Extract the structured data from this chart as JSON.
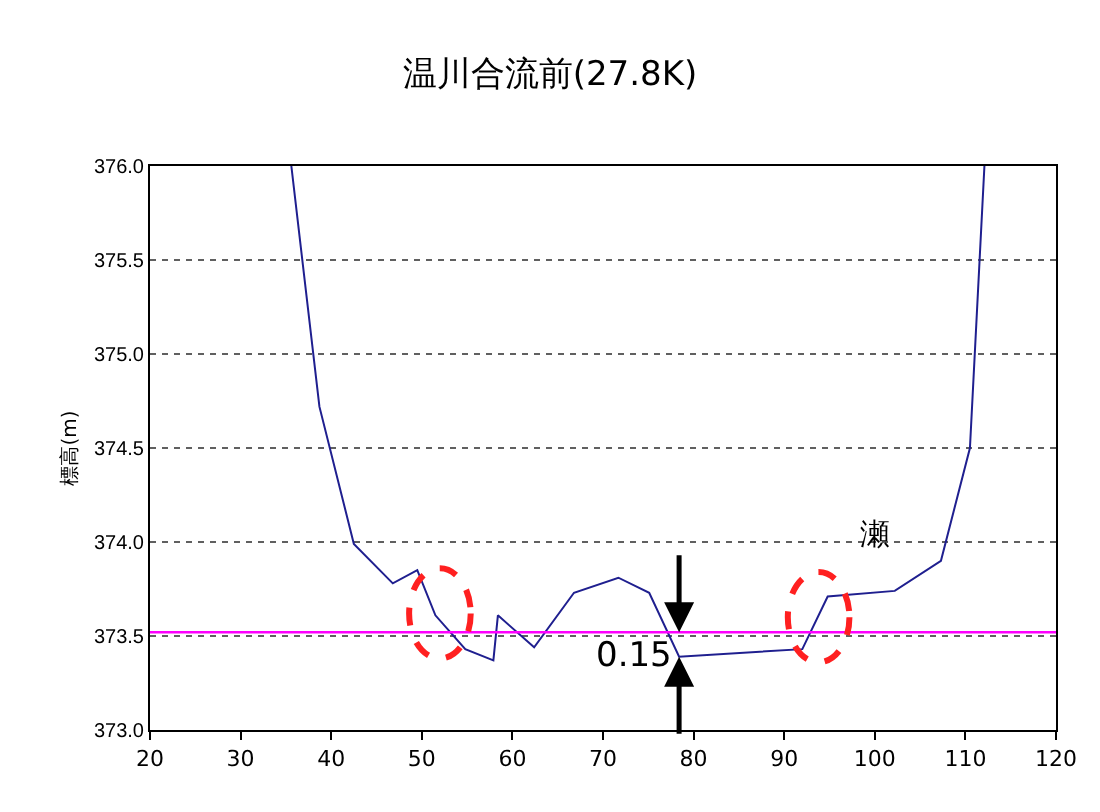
{
  "chart_data": {
    "type": "line",
    "title": "温川合流前(27.8K)",
    "ylabel": "標高(m)",
    "x": [
      35.6,
      38.7,
      42.5,
      46.8,
      49.5,
      51.5,
      54.8,
      57.9,
      58.4,
      62.4,
      66.8,
      71.7,
      75.1,
      78.4,
      92.0,
      94.8,
      102.2,
      107.3,
      110.5,
      112.1
    ],
    "series": [
      {
        "color": "#1f1f8f",
        "values": [
          376.0,
          374.72,
          373.99,
          373.78,
          373.85,
          373.61,
          373.43,
          373.37,
          373.61,
          373.44,
          373.73,
          373.81,
          373.73,
          373.39,
          373.43,
          373.71,
          373.74,
          373.9,
          374.5,
          376.0
        ]
      }
    ],
    "xlim": [
      20,
      120
    ],
    "xticks": [
      20,
      30,
      40,
      50,
      60,
      70,
      80,
      90,
      100,
      110,
      120
    ],
    "ylim": [
      373.0,
      376.0
    ],
    "yticks": [
      {
        "value": 373.0,
        "label": "373.0"
      },
      {
        "value": 373.5,
        "label": "373.5"
      },
      {
        "value": 374.0,
        "label": "374.0"
      },
      {
        "value": 374.5,
        "label": "374.5"
      },
      {
        "value": 375.0,
        "label": "375.0"
      },
      {
        "value": 375.5,
        "label": "375.5"
      },
      {
        "value": 376.0,
        "label": "376.0"
      }
    ],
    "grid": "y",
    "ref_lines": [
      {
        "axis": "y",
        "value": 373.52,
        "color": "#ff00ff"
      }
    ],
    "annotations": [
      {
        "text": "0.15",
        "x": 78.4,
        "y": 373.39
      },
      "瀬"
    ],
    "marker": "none",
    "line_style": "solid"
  }
}
